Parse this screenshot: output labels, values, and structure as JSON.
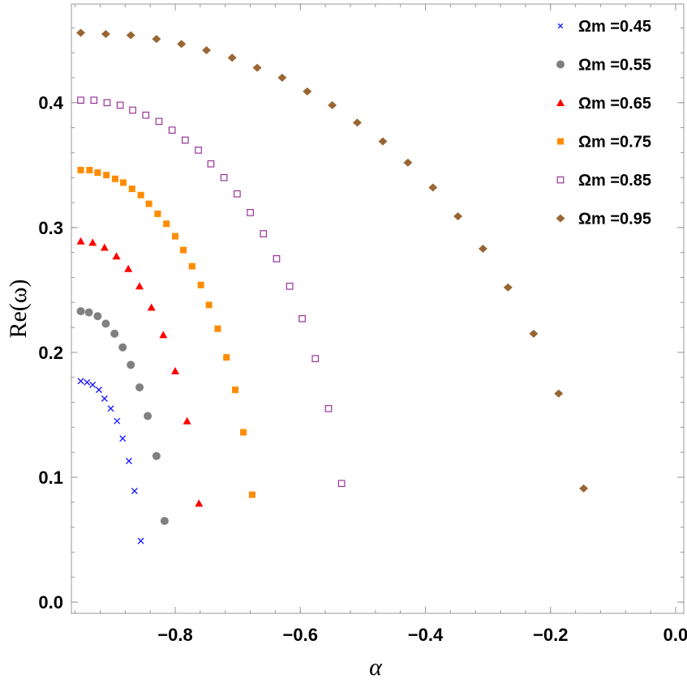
{
  "chart_data": {
    "type": "scatter",
    "xlabel": "α",
    "ylabel": "Re(ω)",
    "xlim": [
      -0.966,
      0.013
    ],
    "ylim": [
      -0.009,
      0.479
    ],
    "xticks": [
      "−0.8",
      "−0.6",
      "−0.4",
      "−0.2",
      "0.0"
    ],
    "xtick_values": [
      -0.8,
      -0.6,
      -0.4,
      -0.2,
      0.0
    ],
    "yticks": [
      "0.0",
      "0.1",
      "0.2",
      "0.3",
      "0.4"
    ],
    "ytick_values": [
      0.0,
      0.1,
      0.2,
      0.3,
      0.4
    ],
    "grid": false,
    "legend_position": "top-right",
    "series": [
      {
        "name": "Ωm =0.45",
        "marker": "x",
        "color": "#1f1fff",
        "x": [
          -0.951,
          -0.941,
          -0.932,
          -0.922,
          -0.913,
          -0.903,
          -0.893,
          -0.884,
          -0.874,
          -0.865,
          -0.855
        ],
        "y": [
          0.177,
          0.176,
          0.174,
          0.17,
          0.163,
          0.155,
          0.145,
          0.131,
          0.113,
          0.089,
          0.049
        ]
      },
      {
        "name": "Ωm =0.55",
        "marker": "circle",
        "color": "#808080",
        "x": [
          -0.951,
          -0.938,
          -0.924,
          -0.911,
          -0.897,
          -0.884,
          -0.871,
          -0.857,
          -0.844,
          -0.83,
          -0.817
        ],
        "y": [
          0.233,
          0.232,
          0.229,
          0.223,
          0.215,
          0.204,
          0.19,
          0.172,
          0.149,
          0.117,
          0.065
        ]
      },
      {
        "name": "Ωm =0.65",
        "marker": "triangle",
        "color": "#ff0000",
        "x": [
          -0.951,
          -0.932,
          -0.913,
          -0.894,
          -0.875,
          -0.857,
          -0.838,
          -0.819,
          -0.8,
          -0.781,
          -0.762
        ],
        "y": [
          0.289,
          0.288,
          0.284,
          0.277,
          0.267,
          0.253,
          0.236,
          0.214,
          0.185,
          0.145,
          0.079
        ]
      },
      {
        "name": "Ωm =0.75",
        "marker": "square",
        "color": "#ff8c00",
        "x": [
          -0.951,
          -0.937,
          -0.924,
          -0.91,
          -0.896,
          -0.883,
          -0.869,
          -0.855,
          -0.842,
          -0.828,
          -0.814,
          -0.8,
          -0.787,
          -0.773,
          -0.759,
          -0.746,
          -0.732,
          -0.718,
          -0.704,
          -0.691,
          -0.677
        ],
        "y": [
          0.346,
          0.346,
          0.344,
          0.342,
          0.339,
          0.336,
          0.331,
          0.326,
          0.319,
          0.311,
          0.303,
          0.293,
          0.282,
          0.269,
          0.254,
          0.238,
          0.219,
          0.196,
          0.17,
          0.136,
          0.086
        ]
      },
      {
        "name": "Ωm =0.85",
        "marker": "open-square",
        "color": "#993399",
        "x": [
          -0.951,
          -0.93,
          -0.909,
          -0.888,
          -0.868,
          -0.847,
          -0.826,
          -0.805,
          -0.784,
          -0.763,
          -0.743,
          -0.722,
          -0.701,
          -0.68,
          -0.659,
          -0.638,
          -0.617,
          -0.597,
          -0.576,
          -0.555,
          -0.534
        ],
        "y": [
          0.402,
          0.402,
          0.4,
          0.398,
          0.394,
          0.39,
          0.385,
          0.378,
          0.37,
          0.362,
          0.351,
          0.34,
          0.327,
          0.312,
          0.295,
          0.275,
          0.253,
          0.227,
          0.195,
          0.155,
          0.095
        ]
      },
      {
        "name": "Ωm =0.95",
        "marker": "diamond",
        "color": "#996633",
        "x": [
          -0.951,
          -0.911,
          -0.871,
          -0.83,
          -0.79,
          -0.75,
          -0.709,
          -0.669,
          -0.629,
          -0.589,
          -0.549,
          -0.509,
          -0.468,
          -0.428,
          -0.388,
          -0.348,
          -0.308,
          -0.268,
          -0.227,
          -0.187,
          -0.147
        ],
        "y": [
          0.456,
          0.455,
          0.454,
          0.451,
          0.447,
          0.442,
          0.436,
          0.428,
          0.42,
          0.409,
          0.398,
          0.384,
          0.369,
          0.352,
          0.332,
          0.309,
          0.283,
          0.252,
          0.215,
          0.167,
          0.091
        ]
      }
    ]
  }
}
